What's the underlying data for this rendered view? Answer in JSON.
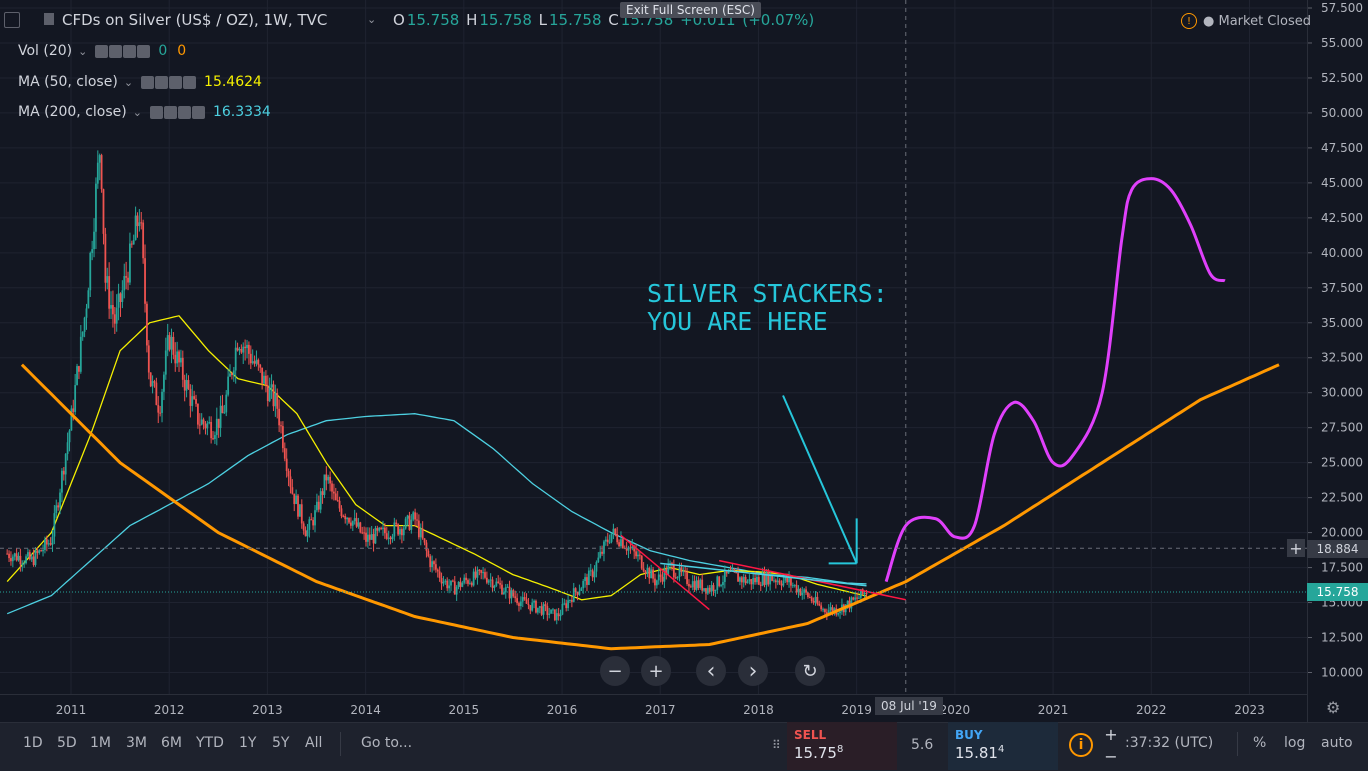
{
  "header": {
    "symbol_title": "CFDs on Silver (US$ / OZ), 1W, TVC",
    "ohlc": {
      "o_label": "O",
      "o": "15.758",
      "h_label": "H",
      "h": "15.758",
      "l_label": "L",
      "l": "15.758",
      "c_label": "C",
      "c": "15.758",
      "change": "+0.011",
      "change_pct": "(+0.07%)"
    },
    "exit_fullscreen": "Exit Full Screen (ESC)",
    "market_status": "Market Closed"
  },
  "indicators": [
    {
      "label": "Vol (20)",
      "values": [
        "0",
        "0"
      ],
      "color": "#ff9800"
    },
    {
      "label": "MA (50, close)",
      "values": [
        "15.4624"
      ],
      "color": "#f5f000"
    },
    {
      "label": "MA (200, close)",
      "values": [
        "16.3334"
      ],
      "color": "#4dd0e1"
    }
  ],
  "annotation": {
    "line1": "SILVER STACKERS:",
    "line2": "YOU ARE HERE",
    "color": "#26c6da"
  },
  "colors": {
    "up": "#26a69a",
    "down": "#ef5350",
    "ma50": "#f5f000",
    "ma200": "#4dd0e1",
    "curve": "#ff9800",
    "projection": "#e040fb",
    "trend": "#ff1744"
  },
  "chart_data": {
    "type": "line",
    "title": "CFDs on Silver (US$ / OZ), 1W, TVC",
    "x_ticks": [
      "2011",
      "2012",
      "2013",
      "2014",
      "2015",
      "2016",
      "2017",
      "2018",
      "2019",
      "2020",
      "2021",
      "2022",
      "2023"
    ],
    "y_ticks": [
      "57.500",
      "55.000",
      "52.500",
      "50.000",
      "47.500",
      "45.000",
      "42.500",
      "40.000",
      "37.500",
      "35.000",
      "32.500",
      "30.000",
      "27.500",
      "25.000",
      "22.500",
      "20.000",
      "17.500",
      "15.000",
      "12.500",
      "10.000"
    ],
    "ylim": [
      8.5,
      57.5
    ],
    "xlim": [
      2010.35,
      2023.55
    ],
    "price_series": {
      "name": "Silver",
      "x": [
        2010.35,
        2010.6,
        2010.8,
        2011.0,
        2011.15,
        2011.3,
        2011.35,
        2011.45,
        2011.6,
        2011.7,
        2011.8,
        2011.9,
        2012.0,
        2012.15,
        2012.3,
        2012.45,
        2012.55,
        2012.7,
        2012.8,
        2012.95,
        2013.1,
        2013.25,
        2013.4,
        2013.5,
        2013.6,
        2013.7,
        2013.85,
        2014.0,
        2014.2,
        2014.4,
        2014.5,
        2014.65,
        2014.8,
        2014.9,
        2015.0,
        2015.2,
        2015.4,
        2015.6,
        2015.8,
        2015.95,
        2016.1,
        2016.3,
        2016.5,
        2016.6,
        2016.8,
        2016.95,
        2017.1,
        2017.3,
        2017.5,
        2017.7,
        2017.9,
        2018.1,
        2018.3,
        2018.5,
        2018.65,
        2018.8,
        2018.95,
        2019.1
      ],
      "values": [
        18.5,
        18.0,
        19.5,
        28.0,
        36.0,
        48.0,
        38.0,
        35.0,
        39.5,
        43.0,
        31.0,
        29.0,
        34.0,
        31.0,
        28.0,
        27.5,
        28.5,
        34.0,
        33.0,
        31.0,
        29.0,
        23.0,
        20.0,
        21.5,
        24.0,
        22.0,
        21.0,
        19.5,
        20.0,
        20.5,
        21.0,
        18.0,
        16.5,
        16.0,
        16.5,
        17.0,
        16.0,
        15.0,
        14.5,
        14.0,
        15.5,
        17.0,
        20.0,
        19.5,
        18.0,
        16.5,
        17.5,
        16.5,
        16.0,
        17.0,
        16.5,
        16.8,
        16.5,
        15.5,
        14.5,
        14.5,
        15.0,
        15.8
      ]
    },
    "series": [
      {
        "name": "MA (50, close)",
        "x": [
          2010.35,
          2010.8,
          2011.2,
          2011.5,
          2011.8,
          2012.1,
          2012.4,
          2012.7,
          2013.0,
          2013.3,
          2013.6,
          2013.9,
          2014.2,
          2014.5,
          2014.8,
          2015.1,
          2015.5,
          2015.9,
          2016.2,
          2016.5,
          2016.8,
          2017.1,
          2017.4,
          2017.7,
          2018.0,
          2018.3,
          2018.6,
          2018.9,
          2019.1
        ],
        "values": [
          16.5,
          20.0,
          27.0,
          33.0,
          35.0,
          35.5,
          33.0,
          31.0,
          30.5,
          28.5,
          25.0,
          22.0,
          20.5,
          20.5,
          19.5,
          18.5,
          17.0,
          16.0,
          15.2,
          15.5,
          17.0,
          17.5,
          17.0,
          17.3,
          17.2,
          17.0,
          16.3,
          15.8,
          15.46
        ]
      },
      {
        "name": "MA (200, close)",
        "x": [
          2010.35,
          2010.8,
          2011.2,
          2011.6,
          2012.0,
          2012.4,
          2012.8,
          2013.2,
          2013.6,
          2014.0,
          2014.5,
          2014.9,
          2015.3,
          2015.7,
          2016.1,
          2016.5,
          2016.9,
          2017.3,
          2017.7,
          2018.1,
          2018.5,
          2018.9,
          2019.1
        ],
        "values": [
          14.2,
          15.5,
          18.0,
          20.5,
          22.0,
          23.5,
          25.5,
          27.0,
          28.0,
          28.3,
          28.5,
          28.0,
          26.0,
          23.5,
          21.5,
          20.0,
          18.7,
          18.0,
          17.5,
          17.0,
          16.8,
          16.4,
          16.33
        ]
      },
      {
        "name": "U-curve",
        "x": [
          2010.5,
          2011.5,
          2012.5,
          2013.5,
          2014.5,
          2015.5,
          2016.5,
          2017.5,
          2018.5,
          2019.5,
          2020.5,
          2021.5,
          2022.5,
          2023.3
        ],
        "values": [
          32.0,
          25.0,
          20.0,
          16.5,
          14.0,
          12.5,
          11.7,
          12.0,
          13.5,
          16.5,
          20.5,
          25.0,
          29.5,
          32.0
        ]
      },
      {
        "name": "Projection",
        "x": [
          2019.3,
          2019.5,
          2019.8,
          2020.0,
          2020.2,
          2020.4,
          2020.6,
          2020.8,
          2021.0,
          2021.2,
          2021.5,
          2021.7,
          2021.8,
          2022.0,
          2022.2,
          2022.4,
          2022.6,
          2022.75
        ],
        "values": [
          16.5,
          20.5,
          21.0,
          19.7,
          20.5,
          27.0,
          29.3,
          28.0,
          25.0,
          25.5,
          30.0,
          41.0,
          44.5,
          45.3,
          44.5,
          42.0,
          38.5,
          38.0
        ]
      }
    ],
    "trendlines": [
      {
        "x": [
          2016.6,
          2017.5
        ],
        "values": [
          19.8,
          14.5
        ]
      },
      {
        "x": [
          2017.6,
          2019.5
        ],
        "values": [
          18.0,
          15.2
        ]
      },
      {
        "x": [
          2017.0,
          2019.1
        ],
        "values": [
          17.8,
          16.2
        ]
      }
    ],
    "h_lines": [
      {
        "value": 18.884,
        "label": "18.884"
      },
      {
        "value": 15.758,
        "label": "15.758"
      }
    ],
    "v_line": {
      "x": 2019.5,
      "label": "08 Jul '19"
    },
    "arrow": {
      "from": [
        2018.25,
        29.8
      ],
      "to": [
        2019.0,
        17.8
      ]
    }
  },
  "bottom": {
    "ranges": [
      "1D",
      "5D",
      "1M",
      "3M",
      "6M",
      "YTD",
      "1Y",
      "5Y",
      "All"
    ],
    "goto": "Go to...",
    "sell_label": "SELL",
    "sell_price": "15.75",
    "sell_sup": "8",
    "spread": "5.6",
    "buy_label": "BUY",
    "buy_price": "15.81",
    "buy_sup": "4",
    "time": ":37:32 (UTC)",
    "pct": "%",
    "log": "log",
    "auto": "auto"
  },
  "controls": {
    "zoom_out": "−",
    "zoom_in": "+",
    "prev": "‹",
    "next": "›",
    "reset": "↻"
  }
}
